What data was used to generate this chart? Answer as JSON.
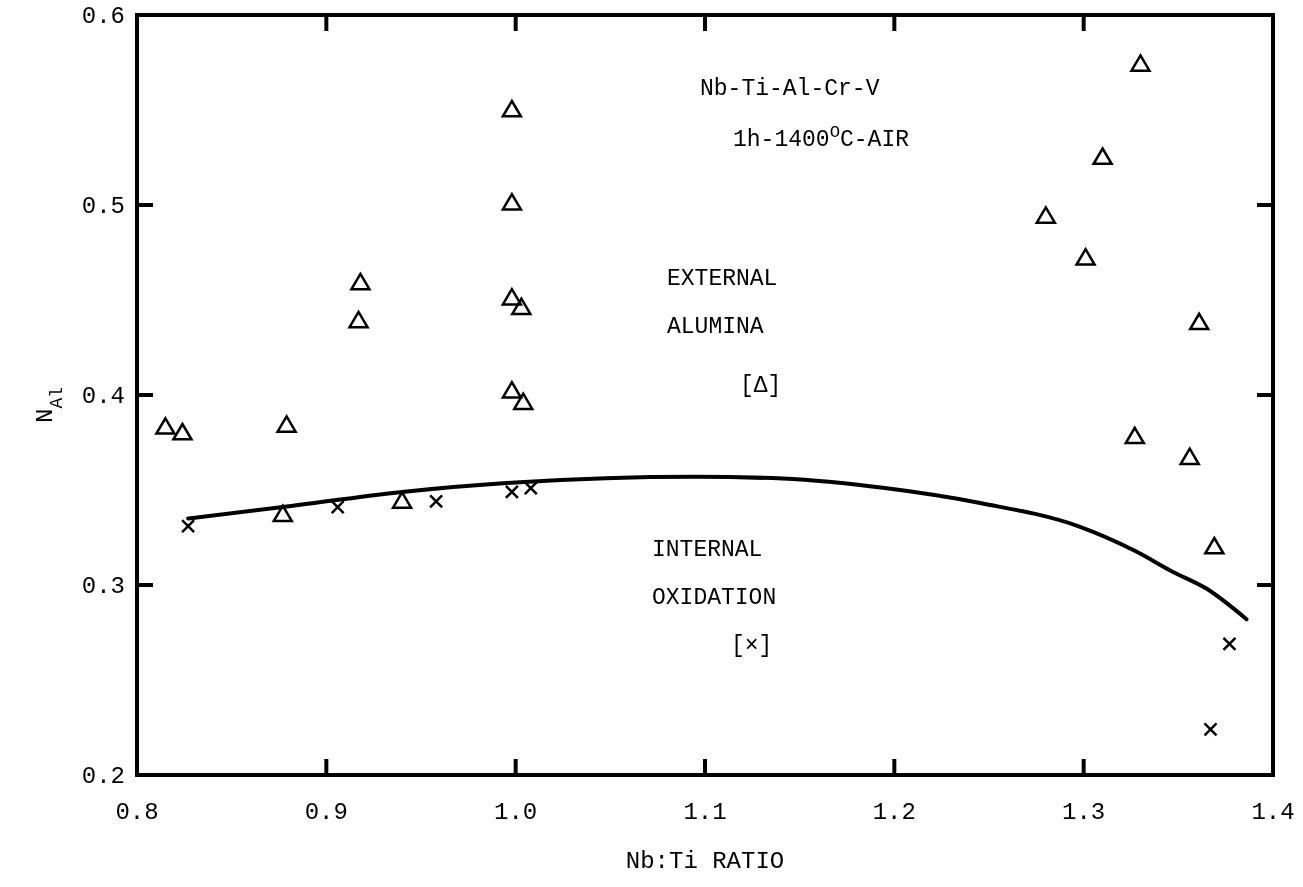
{
  "chart_data": {
    "type": "scatter",
    "xlabel": "Nb:Ti RATIO",
    "ylabel": "N$_{Al}$",
    "xlim": [
      0.8,
      1.4
    ],
    "ylim": [
      0.2,
      0.6
    ],
    "xticks": [
      0.8,
      0.9,
      {
        "value": 1,
        "label": "1.0"
      },
      1.1,
      1.2,
      1.3,
      1.4
    ],
    "yticks": [
      0.2,
      0.3,
      0.4,
      0.5,
      0.6
    ],
    "grid": false,
    "annotations": [
      "Nb-Ti-Al-Cr-V",
      "1h-1400$^{O}$C-AIR",
      "EXTERNAL",
      "ALUMINA",
      "[Δ]",
      "INTERNAL",
      "OXIDATION",
      "[×]"
    ],
    "series": [
      {
        "marker": "triangle",
        "color": "#000000",
        "x": [
          0.815,
          0.824,
          0.879,
          0.918,
          0.917,
          0.998,
          0.998,
          0.998,
          1.003,
          0.998,
          1.004,
          1.33,
          1.31,
          1.28,
          1.301,
          1.361,
          1.327,
          1.356,
          1.369,
          0.877,
          0.94
        ],
        "values": [
          0.383,
          0.38,
          0.384,
          0.459,
          0.439,
          0.55,
          0.501,
          0.451,
          0.446,
          0.402,
          0.396,
          0.574,
          0.525,
          0.494,
          0.472,
          0.438,
          0.378,
          0.367,
          0.32,
          0.337,
          0.344
        ]
      },
      {
        "marker": "cross",
        "color": "#000000",
        "x": [
          0.827,
          0.906,
          0.958,
          0.998,
          1.008,
          1.377,
          1.367
        ],
        "values": [
          0.331,
          0.341,
          0.344,
          0.349,
          0.351,
          0.269,
          0.224
        ]
      },
      {
        "type": "line",
        "marker": "none",
        "line_style": "solid",
        "color": "#000000",
        "x": [
          0.827,
          0.877,
          0.94,
          1.0,
          1.095,
          1.141,
          1.195,
          1.246,
          1.297,
          1.327,
          1.347,
          1.365,
          1.386
        ],
        "values": [
          0.335,
          0.341,
          0.349,
          0.354,
          0.357,
          0.356,
          0.351,
          0.343,
          0.331,
          0.318,
          0.307,
          0.298,
          0.282
        ]
      }
    ]
  }
}
